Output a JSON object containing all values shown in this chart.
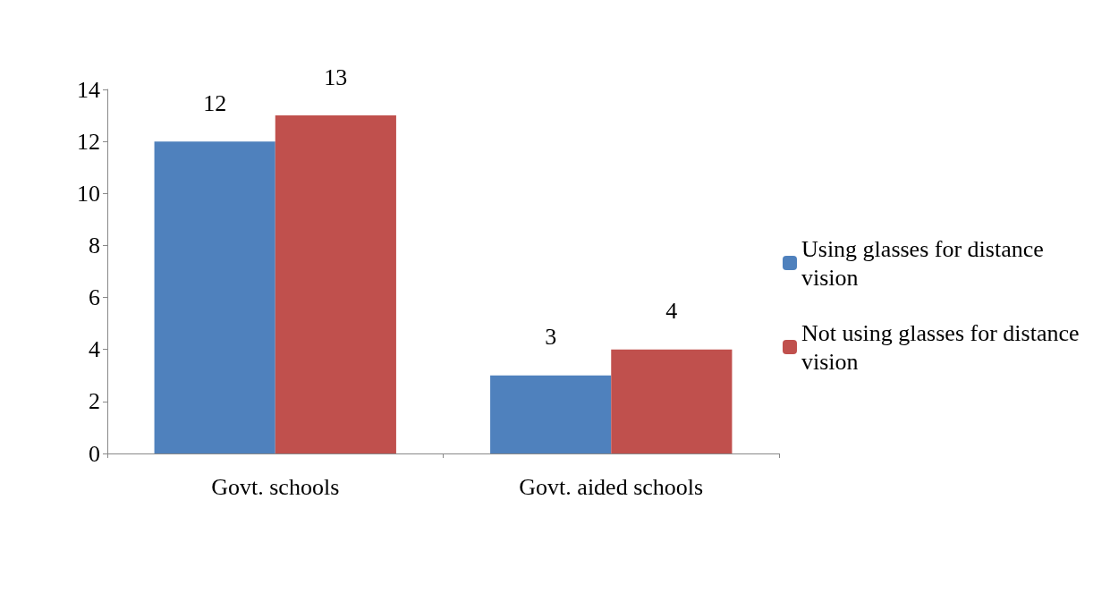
{
  "chart_data": {
    "type": "bar",
    "categories": [
      "Govt. schools",
      "Govt. aided schools"
    ],
    "series": [
      {
        "name": "Using glasses for distance vision",
        "color": "#4f81bd",
        "values": [
          12,
          3
        ]
      },
      {
        "name": "Not using glasses for distance vision",
        "color": "#c0504d",
        "values": [
          13,
          4
        ]
      }
    ],
    "ylim": [
      0,
      14
    ],
    "yticks": [
      0,
      2,
      4,
      6,
      8,
      10,
      12,
      14
    ],
    "grid": false,
    "legend": "right",
    "data_labels": true
  }
}
